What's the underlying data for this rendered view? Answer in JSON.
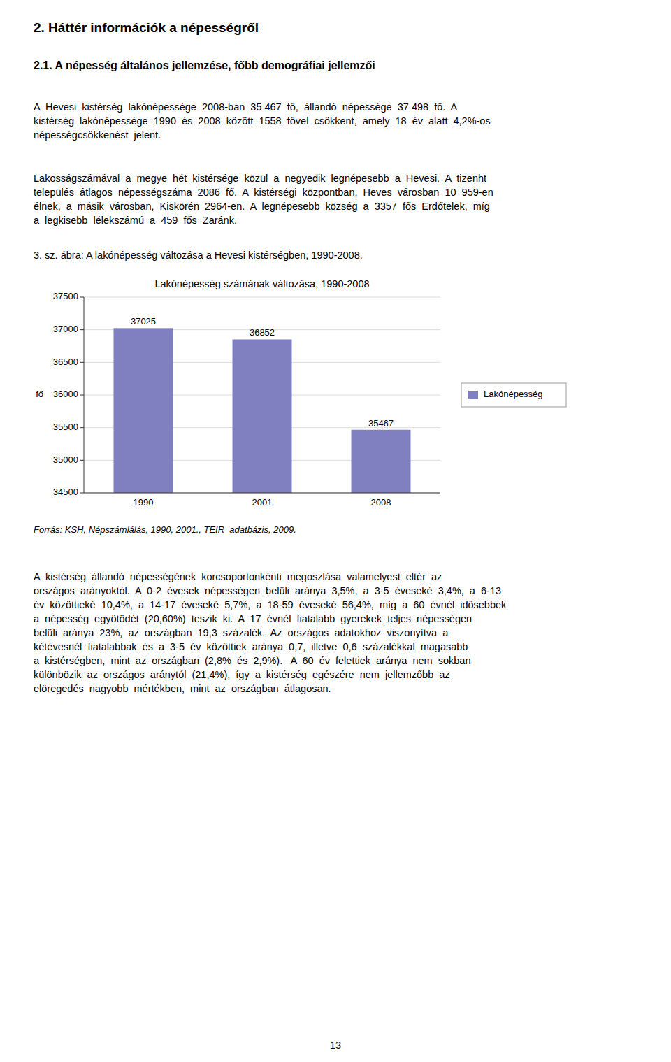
{
  "page_title": "2. Háttér információk a népességről",
  "section_title": "2.1. A népesség általános jellemzése, főbb demográfiai jellemzői",
  "paragraphs": [
    [
      "A  Hevesi  kistérség  lakónépessége  2008-ban  35 467  fő,  állandó  népessége  37 498  fő.  A",
      "kistérség  lakónépessége  1990  és  2008  között  1558  fővel  csökkent,  amely  18  év  alatt  4,2%-os",
      "népességcsökkenést  jelent."
    ],
    [
      "Lakosságszámával  a  megye  hét  kistérsége  közül  a  negyedik  legnépesebb  a  Hevesi.  A  tizenht",
      "település  átlagos  népességszáma  2086  fő.  A  kistérségi  központban,  Heves  városban  10  959-en",
      "élnek,  a  másik  városban,  Kiskörén  2964-en.  A  legnépesebb  község  a  3357  fős  Erdőtelek,  míg",
      "a  legkisebb  lélekszámú  a  459  fős  Zaránk."
    ],
    [
      "A  kistérség  állandó  népességének  korcsoportonkénti  megoszlása  valamelyest  eltér  az",
      "országos  arányoktól.  A  0-2  évesek  népességen  belüli  aránya  3,5%,  a  3-5  éveseké  3,4%,  a  6-13",
      "év  közöttieké  10,4%,  a  14-17  éveseké  5,7%,  a  18-59  éveseké  56,4%,  míg  a  60  évnél  idősebbek",
      "a  népesség  egyötödét  (20,60%)  teszik  ki.  A  17  évnél  fiatalabb  gyerekek  teljes  népességen",
      "belüli  aránya  23%,  az  országban  19,3  százalék.  Az  országos  adatokhoz  viszonyítva  a",
      "kétévesnél  fiatalabbak  és  a  3-5  év  közöttiek  aránya  0,7,  illetve  0,6  százalékkal  magasabb",
      "a  kistérségben,  mint  az  országban  (2,8%  és  2,9%).   A  60  év  felettiek  aránya  nem  sokban",
      "különbözik  az  országos  aránytól  (21,4%),  így  a  kistérség  egészére  nem  jellemzőbb  az",
      "elöregedés  nagyobb  mértékben,  mint  az  országban  átlagosan."
    ]
  ],
  "caption": "3. sz. ábra: A lakónépesség változása a Hevesi kistérségben, 1990-2008.",
  "source": "Forrás: KSH, Népszámlálás, 1990, 2001., TEIR  adatbázis, 2009.",
  "page_number": "13",
  "chart_data": {
    "type": "bar",
    "title": "Lakónépesség számának változása, 1990-2008",
    "categories": [
      "1990",
      "2001",
      "2008"
    ],
    "series": [
      {
        "name": "Lakónépesség",
        "color": "#8080c0",
        "values": [
          37025,
          36852,
          35467
        ]
      }
    ],
    "ylabel": "fő",
    "ylim": [
      34500,
      37500
    ],
    "yticks": [
      34500,
      35000,
      35500,
      36000,
      36500,
      37000,
      37500
    ],
    "grid": true,
    "legend": "right",
    "data_labels": true
  }
}
